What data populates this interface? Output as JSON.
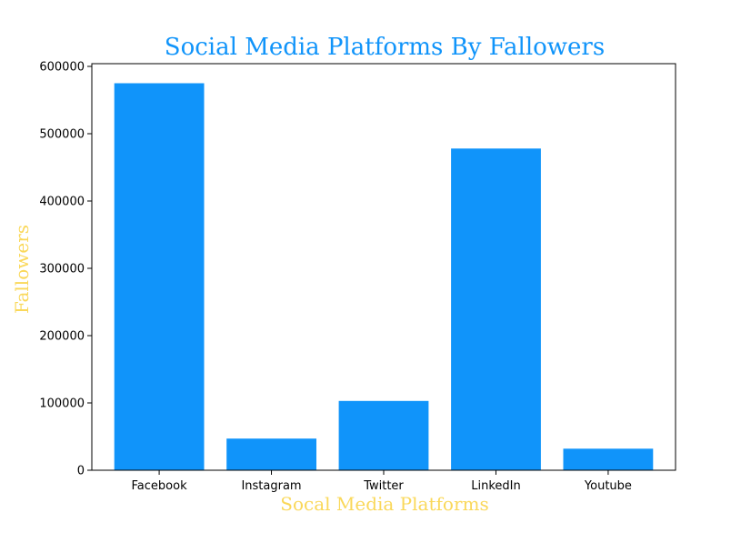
{
  "colors": {
    "bar": "#1094FA",
    "title": "#1094FA",
    "axis_label": "#FAD85A",
    "axis": "#000000",
    "background": "#FFFFFF"
  },
  "chart_data": {
    "type": "bar",
    "title": "Social Media Platforms By Fallowers",
    "xlabel": "Socal Media Platforms",
    "ylabel": "Fallowers",
    "categories": [
      "Facebook",
      "Instagram",
      "Twitter",
      "LinkedIn",
      "Youtube"
    ],
    "values": [
      575000,
      47000,
      103000,
      478000,
      32000
    ],
    "ylim": [
      0,
      600000
    ],
    "yticks": [
      "0",
      "100000",
      "200000",
      "300000",
      "400000",
      "500000",
      "600000"
    ],
    "grid": false,
    "legend": "none"
  }
}
